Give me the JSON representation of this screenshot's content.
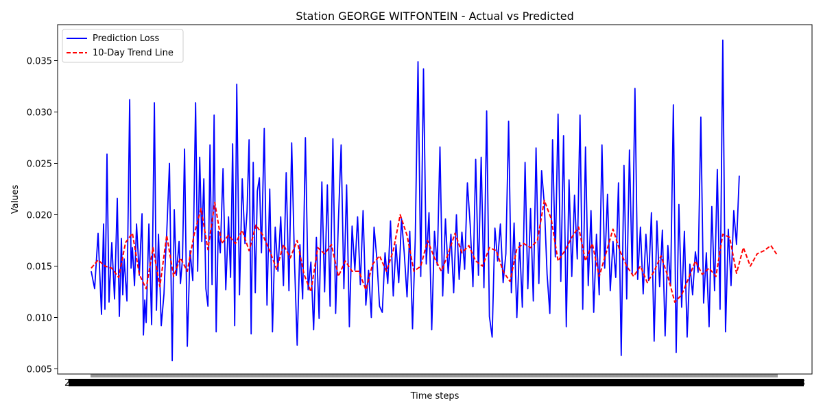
{
  "chart_data": {
    "type": "line",
    "title": "Station GEORGE WITFONTEIN - Actual vs Predicted",
    "xlabel": "Time steps",
    "ylabel": "Values",
    "ylim": [
      0.0045,
      0.0385
    ],
    "yticks": [
      0.005,
      0.01,
      0.015,
      0.02,
      0.025,
      0.03,
      0.035
    ],
    "ytick_labels": [
      "0.005",
      "0.010",
      "0.015",
      "0.020",
      "0.025",
      "0.030",
      "0.035"
    ],
    "x_tick_note_left": "2",
    "x_tick_note_right": "3",
    "legend_position": "upper-left",
    "grid": false,
    "series": [
      {
        "name": "Prediction Loss",
        "color": "#0000ff",
        "style": "solid",
        "points_x": [
          0,
          5,
          10,
          15,
          18,
          20,
          23,
          26,
          30,
          34,
          38,
          41,
          44,
          46,
          48,
          52,
          56,
          58,
          60,
          63,
          66,
          70,
          74,
          76,
          78,
          80,
          84,
          88,
          92,
          95,
          98,
          102,
          106,
          108,
          110,
          114,
          118,
          121,
          124,
          128,
          130,
          133,
          136,
          140,
          144,
          148,
          152,
          155,
          158,
          161,
          164,
          167,
          170,
          173,
          176,
          179,
          182,
          185,
          188,
          192,
          196,
          200,
          203,
          206,
          209,
          212,
          216,
          220,
          224,
          227,
          230,
          233,
          236,
          239,
          242,
          245,
          248,
          252,
          256,
          260,
          264,
          268,
          272,
          276,
          280,
          284,
          288,
          292,
          296,
          300,
          304,
          308,
          312,
          316,
          320,
          324,
          328,
          332,
          336,
          340,
          344,
          348,
          352,
          356,
          360,
          364,
          368,
          372,
          376,
          380,
          384,
          388,
          392,
          396,
          400,
          404,
          408,
          412,
          416,
          420,
          424,
          428,
          432,
          436,
          440,
          444,
          448,
          452,
          456,
          460,
          464,
          468,
          472,
          476,
          480,
          484,
          488,
          492,
          496,
          500,
          504,
          508,
          512,
          516,
          520,
          524,
          528,
          532,
          536,
          540,
          544,
          548,
          552,
          556,
          560,
          564,
          568,
          572,
          576,
          580,
          584,
          588,
          592,
          596,
          600,
          604,
          608,
          612,
          616,
          620,
          624,
          628,
          632,
          636,
          640,
          644,
          648,
          652,
          656,
          660,
          664,
          668,
          672,
          676,
          680,
          684,
          688,
          692,
          696,
          700,
          704,
          708,
          712,
          716,
          720,
          724,
          728,
          732,
          736,
          740,
          744,
          748,
          752,
          756,
          760,
          764,
          768,
          772,
          776,
          780,
          784,
          788,
          792,
          796,
          800,
          804,
          808,
          812,
          816,
          820,
          824,
          828,
          832,
          836,
          840,
          844,
          848,
          852,
          856,
          860,
          864,
          868,
          872,
          876,
          880,
          884,
          888,
          892,
          896,
          900,
          904,
          908,
          912,
          916,
          920,
          924,
          928,
          932,
          936,
          940,
          944,
          948,
          952,
          956,
          960,
          964,
          968,
          972,
          976,
          980,
          984,
          988,
          992,
          996,
          1000
        ],
        "values": [
          0.0145,
          0.0128,
          0.0182,
          0.0103,
          0.0191,
          0.0108,
          0.0259,
          0.0115,
          0.0173,
          0.0118,
          0.0216,
          0.0101,
          0.0177,
          0.0122,
          0.0157,
          0.0116,
          0.0312,
          0.0148,
          0.0168,
          0.0131,
          0.0191,
          0.0141,
          0.0201,
          0.0083,
          0.0117,
          0.0095,
          0.0191,
          0.0093,
          0.0309,
          0.0107,
          0.0181,
          0.0092,
          0.0123,
          0.0156,
          0.0182,
          0.025,
          0.0058,
          0.0205,
          0.0141,
          0.0174,
          0.0133,
          0.0157,
          0.0264,
          0.0072,
          0.0165,
          0.0136,
          0.0309,
          0.0145,
          0.0256,
          0.0174,
          0.0235,
          0.0128,
          0.0111,
          0.0268,
          0.0132,
          0.0297,
          0.0086,
          0.0184,
          0.0163,
          0.0245,
          0.0127,
          0.0198,
          0.0139,
          0.0269,
          0.0092,
          0.0327,
          0.0122,
          0.0235,
          0.0172,
          0.0203,
          0.0273,
          0.0084,
          0.0251,
          0.0124,
          0.0223,
          0.0236,
          0.0163,
          0.0284,
          0.0112,
          0.0225,
          0.0086,
          0.0188,
          0.0145,
          0.0198,
          0.0131,
          0.0241,
          0.0126,
          0.027,
          0.0157,
          0.0073,
          0.0171,
          0.0118,
          0.0275,
          0.0127,
          0.0154,
          0.0088,
          0.0178,
          0.0099,
          0.0232,
          0.0125,
          0.0229,
          0.0111,
          0.0274,
          0.0104,
          0.0194,
          0.0268,
          0.0128,
          0.0229,
          0.0091,
          0.0189,
          0.0146,
          0.0198,
          0.0132,
          0.0204,
          0.0112,
          0.0146,
          0.01,
          0.0188,
          0.0158,
          0.0111,
          0.0105,
          0.0163,
          0.0133,
          0.0194,
          0.0121,
          0.0171,
          0.0134,
          0.0196,
          0.0162,
          0.012,
          0.0184,
          0.0089,
          0.0177,
          0.0349,
          0.014,
          0.0342,
          0.0152,
          0.0202,
          0.0088,
          0.0184,
          0.0151,
          0.0266,
          0.0121,
          0.0196,
          0.0143,
          0.0181,
          0.0124,
          0.02,
          0.0137,
          0.0183,
          0.0147,
          0.0231,
          0.019,
          0.013,
          0.0254,
          0.0141,
          0.0256,
          0.0129,
          0.0301,
          0.0101,
          0.0081,
          0.0187,
          0.0155,
          0.0191,
          0.0134,
          0.0162,
          0.0291,
          0.0124,
          0.0192,
          0.01,
          0.0173,
          0.011,
          0.0251,
          0.0128,
          0.0206,
          0.0116,
          0.0265,
          0.0133,
          0.0243,
          0.021,
          0.0142,
          0.0104,
          0.0273,
          0.0159,
          0.0298,
          0.0135,
          0.0277,
          0.0091,
          0.0234,
          0.014,
          0.0219,
          0.0157,
          0.0297,
          0.0108,
          0.0266,
          0.0131,
          0.0204,
          0.0105,
          0.0181,
          0.0122,
          0.0268,
          0.0148,
          0.022,
          0.0126,
          0.0174,
          0.0139,
          0.0231,
          0.0063,
          0.0248,
          0.0118,
          0.0263,
          0.0142,
          0.0323,
          0.0137,
          0.0188,
          0.0123,
          0.0181,
          0.0136,
          0.0202,
          0.0077,
          0.0194,
          0.013,
          0.0185,
          0.0082,
          0.017,
          0.0131,
          0.0307,
          0.0066,
          0.021,
          0.011,
          0.0184,
          0.0081,
          0.0152,
          0.0122,
          0.0164,
          0.0144,
          0.0295,
          0.0114,
          0.0163,
          0.0091,
          0.0208,
          0.0126,
          0.0244,
          0.0108,
          0.037,
          0.0086,
          0.0186,
          0.0131,
          0.0204,
          0.0171,
          0.0238
        ]
      },
      {
        "name": "10-Day Trend Line",
        "color": "#ff0000",
        "style": "dashed",
        "points_x": [
          0,
          10,
          20,
          30,
          40,
          50,
          60,
          70,
          80,
          90,
          100,
          110,
          120,
          130,
          140,
          150,
          160,
          170,
          180,
          190,
          200,
          210,
          220,
          230,
          240,
          250,
          260,
          270,
          280,
          290,
          300,
          310,
          320,
          330,
          340,
          350,
          360,
          370,
          380,
          390,
          400,
          410,
          420,
          430,
          440,
          450,
          460,
          470,
          480,
          490,
          500,
          510,
          520,
          530,
          540,
          550,
          560,
          570,
          580,
          590,
          600,
          610,
          620,
          630,
          640,
          650,
          660,
          670,
          680,
          690,
          700,
          710,
          720,
          730,
          740,
          750,
          760,
          770,
          780,
          790,
          800,
          810,
          820,
          830,
          840,
          850,
          860,
          870,
          880,
          890,
          900,
          910,
          920,
          930,
          940,
          950,
          960,
          970,
          980,
          990,
          1000
        ],
        "values": [
          0.0148,
          0.0156,
          0.015,
          0.0148,
          0.0139,
          0.0173,
          0.0182,
          0.0142,
          0.0128,
          0.0168,
          0.013,
          0.018,
          0.014,
          0.0158,
          0.0145,
          0.0181,
          0.0206,
          0.0166,
          0.0212,
          0.0172,
          0.018,
          0.0172,
          0.0185,
          0.0165,
          0.019,
          0.018,
          0.0165,
          0.0147,
          0.0171,
          0.0158,
          0.0175,
          0.0142,
          0.0125,
          0.0168,
          0.0162,
          0.0171,
          0.014,
          0.0155,
          0.0145,
          0.0145,
          0.0127,
          0.0152,
          0.016,
          0.0145,
          0.0165,
          0.02,
          0.018,
          0.0145,
          0.015,
          0.0175,
          0.0158,
          0.0145,
          0.0162,
          0.0182,
          0.0163,
          0.017,
          0.0155,
          0.015,
          0.0168,
          0.0165,
          0.0145,
          0.0135,
          0.0167,
          0.0172,
          0.0168,
          0.0175,
          0.0214,
          0.0196,
          0.0155,
          0.0165,
          0.0178,
          0.0188,
          0.0155,
          0.0172,
          0.014,
          0.0163,
          0.0186,
          0.0165,
          0.015,
          0.014,
          0.015,
          0.0134,
          0.0145,
          0.016,
          0.014,
          0.0115,
          0.0122,
          0.0138,
          0.0155,
          0.0142,
          0.0148,
          0.014,
          0.0181,
          0.0178,
          0.0143,
          0.0168,
          0.015,
          0.0162,
          0.0165,
          0.017,
          0.016
        ]
      }
    ]
  }
}
